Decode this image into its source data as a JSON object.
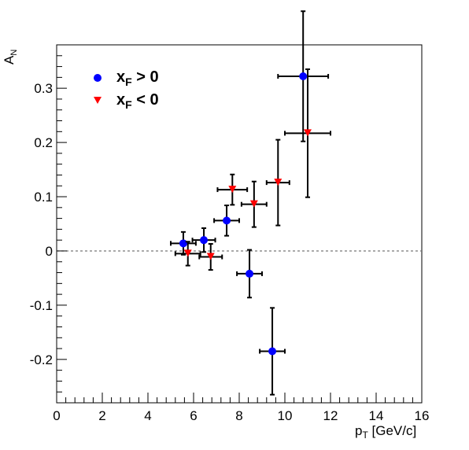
{
  "chart_data": {
    "type": "scatter",
    "xlabel": {
      "main": "p",
      "sub": "T",
      "rest": " [GeV/c]"
    },
    "ylabel": {
      "main": "A",
      "sub": "N"
    },
    "xlim": [
      0,
      16
    ],
    "ylim": [
      -0.28,
      0.38
    ],
    "x_ticks": [
      {
        "v": 0,
        "label": "0"
      },
      {
        "v": 2,
        "label": "2"
      },
      {
        "v": 4,
        "label": "4"
      },
      {
        "v": 6,
        "label": "6"
      },
      {
        "v": 8,
        "label": "8"
      },
      {
        "v": 10,
        "label": "10"
      },
      {
        "v": 12,
        "label": "12"
      },
      {
        "v": 14,
        "label": "14"
      },
      {
        "v": 16,
        "label": "16"
      }
    ],
    "y_ticks": [
      {
        "v": -0.2,
        "label": "-0.2"
      },
      {
        "v": -0.1,
        "label": "-0.1"
      },
      {
        "v": 0,
        "label": "0"
      },
      {
        "v": 0.1,
        "label": "0.1"
      },
      {
        "v": 0.2,
        "label": "0.2"
      },
      {
        "v": 0.3,
        "label": "0.3"
      }
    ],
    "reference_line_y": 0,
    "legend_position": "top-left",
    "series": [
      {
        "legend": {
          "main": "x",
          "sub": "F",
          "rest": " > 0"
        },
        "marker": "circle",
        "color": "#0000ff",
        "points": [
          {
            "x": 5.55,
            "y": 0.014,
            "xerr": 0.55,
            "yerr": 0.021
          },
          {
            "x": 6.45,
            "y": 0.02,
            "xerr": 0.5,
            "yerr": 0.022
          },
          {
            "x": 7.45,
            "y": 0.056,
            "xerr": 0.55,
            "yerr": 0.028
          },
          {
            "x": 8.45,
            "y": -0.042,
            "xerr": 0.55,
            "yerr": 0.044
          },
          {
            "x": 9.45,
            "y": -0.185,
            "xerr": 0.55,
            "yerr": 0.08
          },
          {
            "x": 10.8,
            "y": 0.322,
            "xerr": 1.1,
            "yerr": 0.12
          }
        ]
      },
      {
        "legend": {
          "main": "x",
          "sub": "F",
          "rest": " < 0"
        },
        "marker": "triangle-down",
        "color": "#ff0000",
        "points": [
          {
            "x": 5.75,
            "y": -0.005,
            "xerr": 0.55,
            "yerr": 0.022
          },
          {
            "x": 6.75,
            "y": -0.011,
            "xerr": 0.5,
            "yerr": 0.024
          },
          {
            "x": 7.7,
            "y": 0.113,
            "xerr": 0.65,
            "yerr": 0.028
          },
          {
            "x": 8.65,
            "y": 0.086,
            "xerr": 0.55,
            "yerr": 0.042
          },
          {
            "x": 9.7,
            "y": 0.126,
            "xerr": 0.5,
            "yerr": 0.079
          },
          {
            "x": 11.0,
            "y": 0.217,
            "xerr": 1.0,
            "yerr": 0.118
          }
        ]
      }
    ]
  }
}
